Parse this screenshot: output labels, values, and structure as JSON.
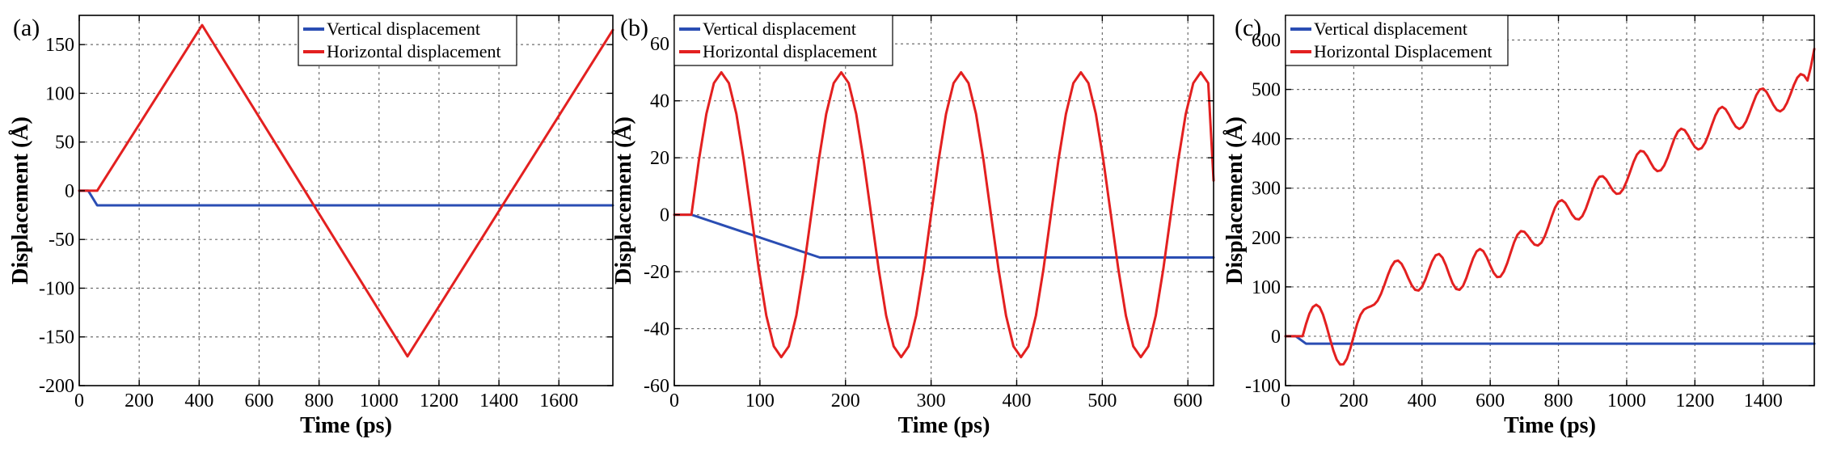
{
  "colors": {
    "vertical": "#2a4db3",
    "horizontal": "#e32020"
  },
  "chart_data": [
    {
      "type": "line",
      "panel_label": "(a)",
      "xlabel": "Time (ps)",
      "ylabel": "Displacement (Å)",
      "xlim": [
        0,
        1780
      ],
      "ylim": [
        -200,
        180
      ],
      "xticks": [
        0,
        200,
        400,
        600,
        800,
        1000,
        1200,
        1400,
        1600
      ],
      "yticks": [
        -200,
        -150,
        -100,
        -50,
        0,
        50,
        100,
        150
      ],
      "legend": "top-center",
      "series": [
        {
          "name": "Vertical displacement",
          "color_key": "vertical",
          "x": [
            0,
            30,
            60,
            1780
          ],
          "y": [
            0,
            0,
            -15,
            -15
          ]
        },
        {
          "name": "Horizontal displacement",
          "color_key": "horizontal",
          "x": [
            0,
            60,
            410,
            1095,
            1780
          ],
          "y": [
            0,
            0,
            170,
            -170,
            165
          ]
        }
      ]
    },
    {
      "type": "line",
      "panel_label": "(b)",
      "xlabel": "Time (ps)",
      "ylabel": "Displacement (Å)",
      "xlim": [
        0,
        630
      ],
      "ylim": [
        -60,
        70
      ],
      "xticks": [
        0,
        100,
        200,
        300,
        400,
        500,
        600
      ],
      "yticks": [
        -60,
        -40,
        -20,
        0,
        20,
        40,
        60
      ],
      "legend": "top-left",
      "series": [
        {
          "name": "Vertical displacement",
          "color_key": "vertical",
          "x": [
            0,
            20,
            170,
            630
          ],
          "y": [
            0,
            0,
            -15,
            -15
          ]
        },
        {
          "name": "Horizontal displacement",
          "color_key": "horizontal",
          "x": [
            0,
            20,
            28.75,
            37.5,
            46.25,
            55,
            63.75,
            72.5,
            81.25,
            90,
            98.75,
            107.5,
            116.25,
            125,
            133.75,
            142.5,
            151.25,
            160,
            168.75,
            177.5,
            186.25,
            195,
            203.75,
            212.5,
            221.25,
            230,
            238.75,
            247.5,
            256.25,
            265,
            273.75,
            282.5,
            291.25,
            300,
            308.75,
            317.5,
            326.25,
            335,
            343.75,
            352.5,
            361.25,
            370,
            378.75,
            387.5,
            396.25,
            405,
            413.75,
            422.5,
            431.25,
            440,
            448.75,
            457.5,
            466.25,
            475,
            483.75,
            492.5,
            501.25,
            510,
            518.75,
            527.5,
            536.25,
            545,
            553.75,
            562.5,
            571.25,
            580,
            588.75,
            597.5,
            606.25,
            615,
            623.75,
            630
          ],
          "y": [
            0,
            0,
            19.1,
            35.4,
            46.2,
            50.0,
            46.2,
            35.4,
            19.1,
            0,
            -19.1,
            -35.4,
            -46.2,
            -50.0,
            -46.2,
            -35.4,
            -19.1,
            0,
            19.1,
            35.4,
            46.2,
            50.0,
            46.2,
            35.4,
            19.1,
            0,
            -19.1,
            -35.4,
            -46.2,
            -50.0,
            -46.2,
            -35.4,
            -19.1,
            0,
            19.1,
            35.4,
            46.2,
            50.0,
            46.2,
            35.4,
            19.1,
            0,
            -19.1,
            -35.4,
            -46.2,
            -50.0,
            -46.2,
            -35.4,
            -19.1,
            0,
            19.1,
            35.4,
            46.2,
            50.0,
            46.2,
            35.4,
            19.1,
            0,
            -19.1,
            -35.4,
            -46.2,
            -50.0,
            -46.2,
            -35.4,
            -19.1,
            0,
            19.1,
            35.4,
            46.2,
            50.0,
            46.2,
            12.0
          ]
        }
      ]
    },
    {
      "type": "line",
      "panel_label": "(c)",
      "xlabel": "Time (ps)",
      "ylabel": "Displacement (Å)",
      "xlim": [
        0,
        1550
      ],
      "ylim": [
        -100,
        650
      ],
      "xticks": [
        0,
        200,
        400,
        600,
        800,
        1000,
        1200,
        1400
      ],
      "yticks": [
        -100,
        0,
        100,
        200,
        300,
        400,
        500,
        600
      ],
      "legend": "top-left",
      "series": [
        {
          "name": "Vertical displacement",
          "color_key": "vertical",
          "x": [
            0,
            30,
            60,
            1550
          ],
          "y": [
            0,
            0,
            -15,
            -15
          ]
        },
        {
          "name": "Horizontal Displacement",
          "color_key": "horizontal",
          "x": [
            0,
            50,
            60,
            70,
            80,
            90,
            100,
            110,
            120,
            130,
            140,
            150,
            160,
            170,
            180,
            190,
            200,
            210,
            220,
            230,
            240,
            250,
            260,
            270,
            280,
            290,
            300,
            310,
            320,
            330,
            340,
            350,
            360,
            370,
            380,
            390,
            400,
            410,
            420,
            430,
            440,
            450,
            460,
            470,
            480,
            490,
            500,
            510,
            520,
            530,
            540,
            550,
            560,
            570,
            580,
            590,
            600,
            610,
            620,
            630,
            640,
            650,
            660,
            670,
            680,
            690,
            700,
            710,
            720,
            730,
            740,
            750,
            760,
            770,
            780,
            790,
            800,
            810,
            820,
            830,
            840,
            850,
            860,
            870,
            880,
            890,
            900,
            910,
            920,
            930,
            940,
            950,
            960,
            970,
            980,
            990,
            1000,
            1010,
            1020,
            1030,
            1040,
            1050,
            1060,
            1070,
            1080,
            1090,
            1100,
            1110,
            1120,
            1130,
            1140,
            1150,
            1160,
            1170,
            1180,
            1190,
            1200,
            1210,
            1220,
            1230,
            1240,
            1250,
            1260,
            1270,
            1280,
            1290,
            1300,
            1310,
            1320,
            1330,
            1340,
            1350,
            1360,
            1370,
            1380,
            1390,
            1400,
            1410,
            1420,
            1430,
            1440,
            1450,
            1460,
            1470,
            1480,
            1490,
            1500,
            1510,
            1520,
            1530,
            1540,
            1550
          ],
          "y": [
            0,
            0,
            24.6,
            45.6,
            59.4,
            64.0,
            58.8,
            43.6,
            21.2,
            -4.6,
            -28.6,
            -47.2,
            -57.2,
            -56.8,
            -45.6,
            -24.6,
            0.4,
            25.2,
            43.6,
            54.0,
            58.0,
            60.6,
            64.2,
            72.0,
            85.8,
            104.6,
            124.0,
            140.8,
            151.4,
            153.4,
            146.8,
            133.6,
            117.6,
            103.2,
            94.0,
            92.6,
            100.2,
            115.0,
            134.0,
            152.0,
            164.0,
            166.6,
            159.4,
            144.0,
            124.6,
            107.0,
            95.8,
            94.0,
            101.6,
            117.8,
            138.4,
            158.0,
            171.8,
            176.8,
            172.2,
            159.8,
            143.4,
            128.6,
            120.0,
            120.8,
            131.0,
            148.4,
            169.6,
            190.2,
            205.6,
            213.0,
            211.6,
            203.6,
            193.4,
            185.6,
            183.8,
            189.6,
            202.8,
            221.4,
            242.0,
            260.4,
            272.4,
            275.6,
            270.2,
            258.8,
            246.4,
            238.0,
            236.6,
            243.4,
            257.8,
            277.0,
            297.0,
            313.6,
            323.2,
            324.2,
            317.6,
            306.2,
            294.8,
            288.4,
            289.4,
            298.2,
            313.6,
            333.2,
            352.8,
            368.0,
            375.6,
            374.0,
            364.8,
            352.0,
            340.4,
            334.4,
            336.0,
            345.6,
            361.8,
            381.4,
            400.6,
            414.6,
            420.4,
            417.4,
            407.2,
            394.2,
            383.4,
            378.4,
            381.2,
            391.8,
            408.6,
            428.4,
            447.0,
            460.2,
            464.6,
            459.8,
            448.6,
            435.2,
            424.4,
            420.0,
            423.8,
            435.0,
            452.0,
            471.2,
            488.6,
            499.8,
            501.6,
            494.8,
            482.2,
            468.6,
            458.6,
            455.4,
            460.4,
            472.6,
            490.0,
            508.6,
            523.6,
            531.0,
            528.4,
            518.0,
            546.0,
            582.0
          ]
        }
      ]
    }
  ]
}
